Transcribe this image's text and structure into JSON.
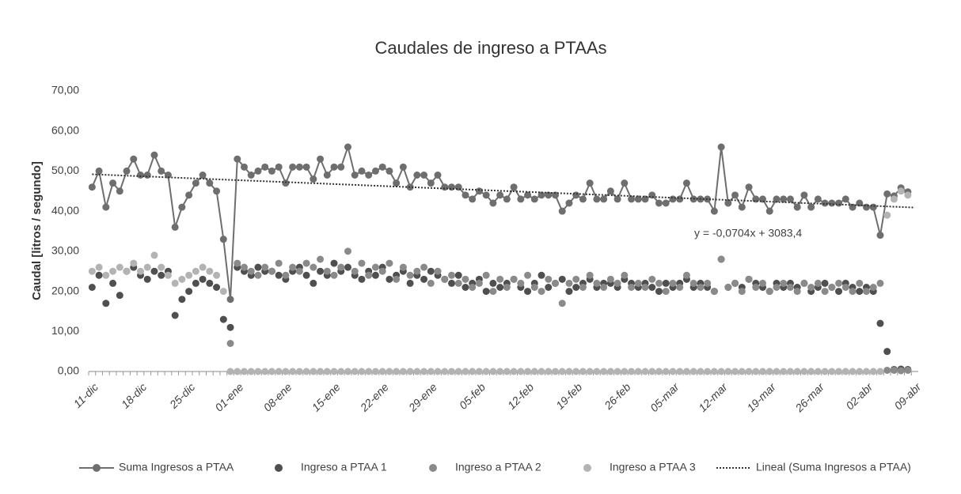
{
  "chart_data": {
    "type": "line",
    "title": "Caudales de ingreso a PTAAs",
    "y_label": "Caudal [litros / segundo]",
    "categories": [
      "11-dic",
      null,
      null,
      null,
      null,
      null,
      null,
      "18-dic",
      null,
      null,
      null,
      null,
      null,
      null,
      "25-dic",
      null,
      null,
      null,
      null,
      null,
      null,
      "01-ene",
      null,
      null,
      null,
      null,
      null,
      null,
      "08-ene",
      null,
      null,
      null,
      null,
      null,
      null,
      "15-ene",
      null,
      null,
      null,
      null,
      null,
      null,
      "22-ene",
      null,
      null,
      null,
      null,
      null,
      null,
      "29-ene",
      null,
      null,
      null,
      null,
      null,
      null,
      "05-feb",
      null,
      null,
      null,
      null,
      null,
      null,
      "12-feb",
      null,
      null,
      null,
      null,
      null,
      null,
      "19-feb",
      null,
      null,
      null,
      null,
      null,
      null,
      "26-feb",
      null,
      null,
      null,
      null,
      null,
      null,
      "05-mar",
      null,
      null,
      null,
      null,
      null,
      null,
      "12-mar",
      null,
      null,
      null,
      null,
      null,
      null,
      "19-mar",
      null,
      null,
      null,
      null,
      null,
      null,
      "26-mar",
      null,
      null,
      null,
      null,
      null,
      null,
      "02-abr",
      null,
      null,
      null,
      null,
      null,
      null,
      "09-abr"
    ],
    "series": [
      {
        "name": "Suma Ingresos a PTAA",
        "color": "#6e6e6e",
        "line": true,
        "values": [
          46,
          50,
          41,
          47,
          45,
          50,
          53,
          49,
          49,
          54,
          50,
          49,
          36,
          41,
          44,
          47,
          49,
          47,
          45,
          33,
          18,
          53,
          51,
          49,
          50,
          51,
          50,
          51,
          47,
          51,
          51,
          51,
          48,
          53,
          49,
          51,
          51,
          56,
          49,
          50,
          49,
          50,
          51,
          50,
          47,
          51,
          46,
          49,
          49,
          47,
          49,
          46,
          46,
          46,
          44,
          43,
          45,
          44,
          42,
          44,
          43,
          46,
          43,
          44,
          43,
          44,
          44,
          44,
          40,
          42,
          44,
          43,
          47,
          43,
          43,
          45,
          43,
          47,
          43,
          43,
          43,
          44,
          42,
          42,
          43,
          43,
          47,
          43,
          43,
          43,
          40,
          56,
          42,
          44,
          41,
          46,
          43,
          43,
          40,
          43,
          43,
          43,
          41,
          44,
          41,
          43,
          42,
          42,
          42,
          43,
          41,
          42,
          41,
          41,
          34,
          44.3,
          43.8,
          45.8,
          44.8,
          null
        ]
      },
      {
        "name": "Ingreso a PTAA 1",
        "color": "#4f4f4f",
        "line": false,
        "values": [
          21,
          24,
          17,
          22,
          19,
          25,
          26,
          24,
          23,
          25,
          24,
          25,
          14,
          18,
          20,
          22,
          23,
          22,
          21,
          13,
          11,
          26,
          25,
          24,
          26,
          25,
          25,
          24,
          23,
          25,
          26,
          24,
          22,
          25,
          24,
          27,
          25,
          26,
          24,
          23,
          25,
          24,
          26,
          23,
          24,
          25,
          22,
          24,
          23,
          25,
          24,
          23,
          22,
          24,
          21,
          22,
          23,
          20,
          22,
          21,
          22,
          23,
          21,
          20,
          22,
          24,
          21,
          22,
          23,
          20,
          21,
          22,
          23,
          21,
          22,
          22,
          21,
          23,
          22,
          21,
          22,
          21,
          20,
          22,
          21,
          22,
          23,
          21,
          22,
          21,
          20,
          28,
          21,
          22,
          21,
          23,
          22,
          21,
          20,
          22,
          21,
          22,
          21,
          22,
          20,
          21,
          22,
          21,
          20,
          22,
          21,
          20,
          21,
          20,
          12,
          5,
          0.5,
          0.6,
          0.5,
          null
        ]
      },
      {
        "name": "Ingreso a PTAA 2",
        "color": "#8a8a8a",
        "line": false,
        "values": [
          null,
          null,
          null,
          null,
          null,
          null,
          null,
          null,
          null,
          null,
          null,
          null,
          null,
          null,
          null,
          null,
          null,
          null,
          null,
          null,
          7,
          27,
          26,
          25,
          24,
          26,
          25,
          27,
          24,
          26,
          25,
          27,
          26,
          28,
          25,
          24,
          26,
          30,
          25,
          27,
          24,
          26,
          25,
          27,
          23,
          26,
          24,
          25,
          26,
          22,
          25,
          23,
          24,
          22,
          23,
          21,
          22,
          24,
          20,
          23,
          21,
          23,
          22,
          24,
          21,
          20,
          23,
          22,
          17,
          22,
          23,
          21,
          24,
          22,
          21,
          23,
          22,
          24,
          21,
          22,
          21,
          23,
          22,
          20,
          22,
          21,
          24,
          22,
          21,
          22,
          20,
          28,
          21,
          22,
          20,
          23,
          21,
          22,
          20,
          21,
          22,
          21,
          20,
          22,
          21,
          22,
          20,
          21,
          22,
          21,
          20,
          22,
          20,
          21,
          22,
          0.3,
          0.3,
          0.2,
          0.3,
          null
        ]
      },
      {
        "name": "Ingreso a PTAA 3",
        "color": "#b3b3b3",
        "line": false,
        "values": [
          25,
          26,
          24,
          25,
          26,
          25,
          27,
          25,
          26,
          29,
          26,
          24,
          22,
          23,
          24,
          25,
          26,
          25,
          24,
          20,
          0,
          0,
          0,
          0,
          0,
          0,
          0,
          0,
          0,
          0,
          0,
          0,
          0,
          0,
          0,
          0,
          0,
          0,
          0,
          0,
          0,
          0,
          0,
          0,
          0,
          0,
          0,
          0,
          0,
          0,
          0,
          0,
          0,
          0,
          0,
          0,
          0,
          0,
          0,
          0,
          0,
          0,
          0,
          0,
          0,
          0,
          0,
          0,
          0,
          0,
          0,
          0,
          0,
          0,
          0,
          0,
          0,
          0,
          0,
          0,
          0,
          0,
          0,
          0,
          0,
          0,
          0,
          0,
          0,
          0,
          0,
          0,
          0,
          0,
          0,
          0,
          0,
          0,
          0,
          0,
          0,
          0,
          0,
          0,
          0,
          0,
          0,
          0,
          0,
          0,
          0,
          0,
          0,
          0,
          0,
          39,
          43,
          45,
          44,
          null
        ]
      }
    ],
    "trendline": {
      "name": "Lineal (Suma Ingresos a PTAA)",
      "color": "#333333",
      "label": "y = -0,0704x + 3083,4",
      "values": [
        49.2,
        40.9
      ]
    },
    "ylim": [
      0,
      70
    ],
    "yticks": [
      {
        "value": 0,
        "label": "0,00"
      },
      {
        "value": 10,
        "label": "10,00"
      },
      {
        "value": 20,
        "label": "20,00"
      },
      {
        "value": 30,
        "label": "30,00"
      },
      {
        "value": 40,
        "label": "40,00"
      },
      {
        "value": 50,
        "label": "50,00"
      },
      {
        "value": 60,
        "label": "60,00"
      },
      {
        "value": 70,
        "label": "70,00"
      }
    ],
    "grid": false,
    "legend": "bottom"
  }
}
